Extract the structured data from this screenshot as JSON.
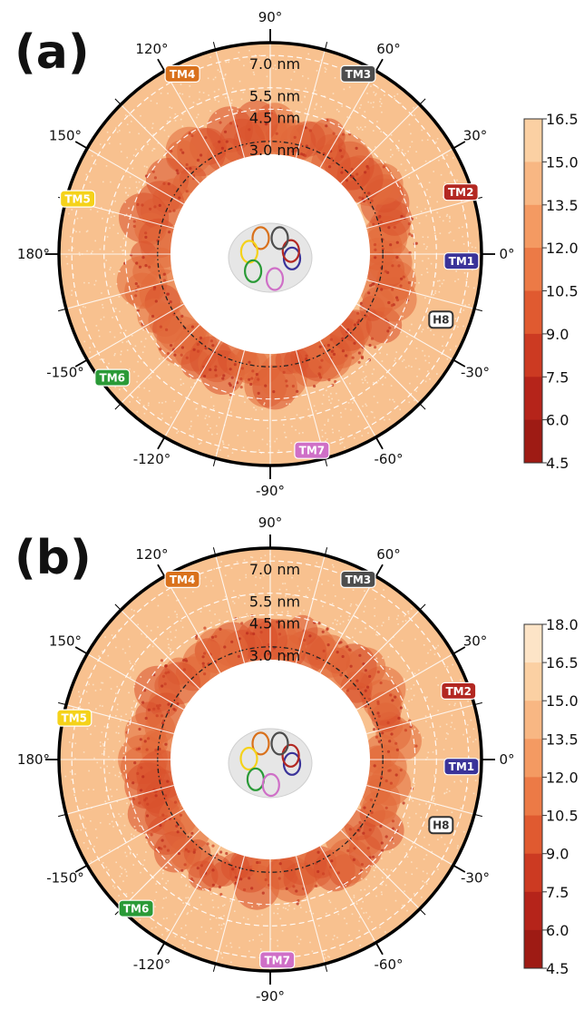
{
  "panels": [
    {
      "label": "(a)",
      "radial_rings": [
        "7.0 nm",
        "5.5 nm",
        "4.5 nm",
        "3.0 nm"
      ],
      "angle_labels": [
        "90°",
        "60°",
        "30°",
        "0°",
        "-30°",
        "-60°",
        "-90°",
        "-120°",
        "-150°",
        "180°",
        "150°",
        "120°"
      ],
      "helices": [
        {
          "name": "TM1",
          "angle_deg": -2,
          "color": "#3a3399",
          "text_color": "#ffffff"
        },
        {
          "name": "TM2",
          "angle_deg": 18,
          "color": "#b32822",
          "text_color": "#ffffff"
        },
        {
          "name": "TM3",
          "angle_deg": 64,
          "color": "#4d4d4d",
          "text_color": "#ffffff"
        },
        {
          "name": "TM4",
          "angle_deg": 116,
          "color": "#d9711c",
          "text_color": "#ffffff"
        },
        {
          "name": "TM5",
          "angle_deg": 164,
          "color": "#f5d21a",
          "text_color": "#ffffff"
        },
        {
          "name": "TM6",
          "angle_deg": -142,
          "color": "#2a9a37",
          "text_color": "#ffffff"
        },
        {
          "name": "TM7",
          "angle_deg": -78,
          "color": "#cf6fc7",
          "text_color": "#ffffff"
        },
        {
          "name": "H8",
          "angle_deg": -20,
          "color": "#ffffff",
          "text_color": "#333333"
        }
      ],
      "colorbar": {
        "ticks": [
          "16.5",
          "15.0",
          "13.5",
          "12.0",
          "10.5",
          "9.0",
          "7.5",
          "6.0",
          "4.5"
        ]
      }
    },
    {
      "label": "(b)",
      "radial_rings": [
        "7.0 nm",
        "5.5 nm",
        "4.5 nm",
        "3.0 nm"
      ],
      "angle_labels": [
        "90°",
        "60°",
        "30°",
        "0°",
        "-30°",
        "-60°",
        "-90°",
        "-120°",
        "-150°",
        "180°",
        "150°",
        "120°"
      ],
      "helices": [
        {
          "name": "TM1",
          "angle_deg": -2,
          "color": "#3a3399",
          "text_color": "#ffffff"
        },
        {
          "name": "TM2",
          "angle_deg": 20,
          "color": "#b32822",
          "text_color": "#ffffff"
        },
        {
          "name": "TM3",
          "angle_deg": 64,
          "color": "#4d4d4d",
          "text_color": "#ffffff"
        },
        {
          "name": "TM4",
          "angle_deg": 116,
          "color": "#d9711c",
          "text_color": "#ffffff"
        },
        {
          "name": "TM5",
          "angle_deg": 168,
          "color": "#f5d21a",
          "text_color": "#ffffff"
        },
        {
          "name": "TM6",
          "angle_deg": -132,
          "color": "#2a9a37",
          "text_color": "#ffffff"
        },
        {
          "name": "TM7",
          "angle_deg": -88,
          "color": "#cf6fc7",
          "text_color": "#ffffff"
        },
        {
          "name": "H8",
          "angle_deg": -20,
          "color": "#ffffff",
          "text_color": "#333333"
        }
      ],
      "colorbar": {
        "ticks": [
          "18.0",
          "16.5",
          "15.0",
          "13.5",
          "12.0",
          "10.5",
          "9.0",
          "7.5",
          "6.0",
          "4.5"
        ]
      }
    }
  ],
  "chart_data": [
    {
      "type": "heatmap",
      "projection": "polar",
      "radial_ticks_nm": [
        3.0,
        4.5,
        5.5,
        7.0
      ],
      "angle_ticks_deg": [
        0,
        30,
        60,
        90,
        120,
        150,
        180,
        -150,
        -120,
        -90,
        -60,
        -30
      ],
      "colorbar_range": [
        4.5,
        16.5
      ],
      "colorbar_ticks": [
        16.5,
        15.0,
        13.5,
        12.0,
        10.5,
        9.0,
        7.5,
        6.0,
        4.5
      ],
      "colormap": "OrRd_r",
      "grid": true
    },
    {
      "type": "heatmap",
      "projection": "polar",
      "radial_ticks_nm": [
        3.0,
        4.5,
        5.5,
        7.0
      ],
      "angle_ticks_deg": [
        0,
        30,
        60,
        90,
        120,
        150,
        180,
        -150,
        -120,
        -90,
        -60,
        -30
      ],
      "colorbar_range": [
        4.5,
        18.0
      ],
      "colorbar_ticks": [
        18.0,
        16.5,
        15.0,
        13.5,
        12.0,
        10.5,
        9.0,
        7.5,
        6.0,
        4.5
      ],
      "colormap": "OrRd_r",
      "grid": true
    }
  ]
}
